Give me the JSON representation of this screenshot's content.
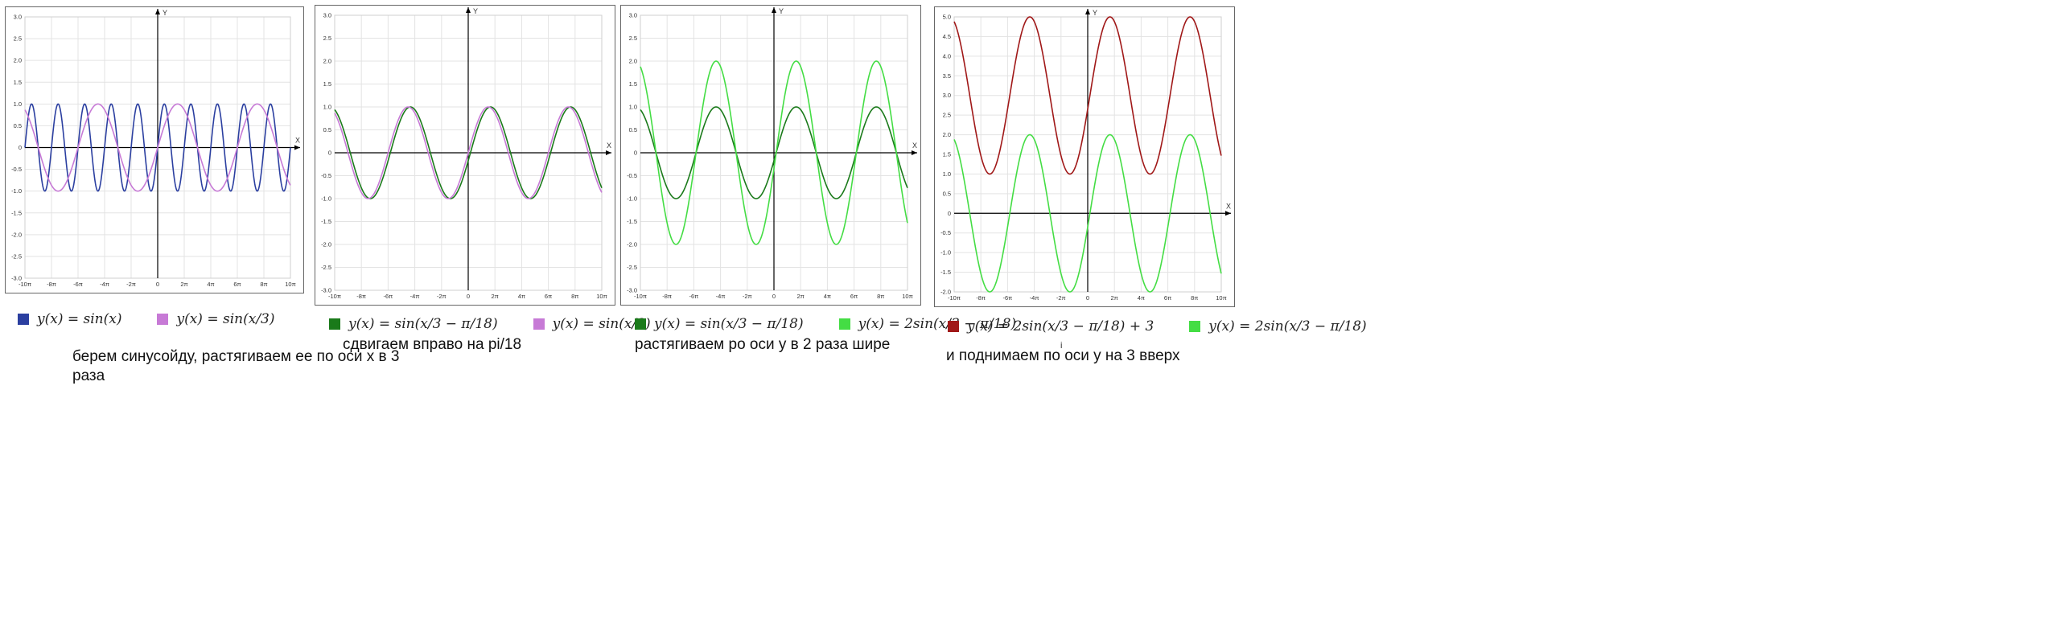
{
  "chart_data": [
    {
      "type": "line",
      "xlabel": "X",
      "ylabel": "Y",
      "xlim": [
        -10,
        10
      ],
      "ylim": [
        -3,
        3
      ],
      "yticks": [
        -3.0,
        -2.5,
        -2.0,
        -1.5,
        -1.0,
        -0.5,
        0,
        0.5,
        1.0,
        1.5,
        2.0,
        2.5,
        3.0
      ],
      "ytick_labels": [
        "-3.0",
        "-2.5",
        "-2.0",
        "-1.5",
        "-1.0",
        "-0.5",
        "0",
        "0.5",
        "1.0",
        "1.5",
        "2.0",
        "2.5",
        "3.0"
      ],
      "xticks": [
        -10,
        -8,
        -6,
        -4,
        -2,
        0,
        2,
        4,
        6,
        8,
        10
      ],
      "xtick_labels": [
        "-10π",
        "-8π",
        "-6π",
        "-4π",
        "-2π",
        "0",
        "2π",
        "4π",
        "6π",
        "8π",
        "10π"
      ],
      "series": [
        {
          "label": "y(x) = sin(x)",
          "color": "#2b3fa0",
          "amplitude": 1,
          "x_scale": 1,
          "phase": 0,
          "shift": 0
        },
        {
          "label": "y(x) = sin(x/3)",
          "color": "#c77ad6",
          "amplitude": 1,
          "x_scale": 3,
          "phase": 0,
          "shift": 0
        }
      ],
      "caption": "берем синусойду, растягиваем ее по оси х в 3 раза"
    },
    {
      "type": "line",
      "xlabel": "X",
      "ylabel": "Y",
      "xlim": [
        -10,
        10
      ],
      "ylim": [
        -3,
        3
      ],
      "yticks": [
        -3.0,
        -2.5,
        -2.0,
        -1.5,
        -1.0,
        -0.5,
        0,
        0.5,
        1.0,
        1.5,
        2.0,
        2.5,
        3.0
      ],
      "ytick_labels": [
        "-3.0",
        "-2.5",
        "-2.0",
        "-1.5",
        "-1.0",
        "-0.5",
        "0",
        "0.5",
        "1.0",
        "1.5",
        "2.0",
        "2.5",
        "3.0"
      ],
      "xticks": [
        -10,
        -8,
        -6,
        -4,
        -2,
        0,
        2,
        4,
        6,
        8,
        10
      ],
      "xtick_labels": [
        "-10π",
        "-8π",
        "-6π",
        "-4π",
        "-2π",
        "0",
        "2π",
        "4π",
        "6π",
        "8π",
        "10π"
      ],
      "series": [
        {
          "label": "y(x) = sin(x/3 − π/18)",
          "color": "#1a7a1a",
          "amplitude": 1,
          "x_scale": 3,
          "phase": 0.1745,
          "shift": 0
        },
        {
          "label": "y(x) = sin(x/3)",
          "color": "#c77ad6",
          "amplitude": 1,
          "x_scale": 3,
          "phase": 0,
          "shift": 0
        }
      ],
      "caption": "сдвигаем вправо на pi/18"
    },
    {
      "type": "line",
      "xlabel": "X",
      "ylabel": "Y",
      "xlim": [
        -10,
        10
      ],
      "ylim": [
        -3,
        3
      ],
      "yticks": [
        -3.0,
        -2.5,
        -2.0,
        -1.5,
        -1.0,
        -0.5,
        0,
        0.5,
        1.0,
        1.5,
        2.0,
        2.5,
        3.0
      ],
      "ytick_labels": [
        "-3.0",
        "-2.5",
        "-2.0",
        "-1.5",
        "-1.0",
        "-0.5",
        "0",
        "0.5",
        "1.0",
        "1.5",
        "2.0",
        "2.5",
        "3.0"
      ],
      "xticks": [
        -10,
        -8,
        -6,
        -4,
        -2,
        0,
        2,
        4,
        6,
        8,
        10
      ],
      "xtick_labels": [
        "-10π",
        "-8π",
        "-6π",
        "-4π",
        "-2π",
        "0",
        "2π",
        "4π",
        "6π",
        "8π",
        "10π"
      ],
      "series": [
        {
          "label": "y(x) = sin(x/3 − π/18)",
          "color": "#1a7a1a",
          "amplitude": 1,
          "x_scale": 3,
          "phase": 0.1745,
          "shift": 0
        },
        {
          "label": "y(x) = 2sin(x/3 − π/18)",
          "color": "#44dd44",
          "amplitude": 2,
          "x_scale": 3,
          "phase": 0.1745,
          "shift": 0
        }
      ],
      "caption": "растягиваем ро оси у в 2 раза шире"
    },
    {
      "type": "line",
      "xlabel": "X",
      "ylabel": "Y",
      "xlim": [
        -10,
        10
      ],
      "ylim": [
        -2,
        5
      ],
      "yticks": [
        -2.0,
        -1.5,
        -1.0,
        -0.5,
        0,
        0.5,
        1.0,
        1.5,
        2.0,
        2.5,
        3.0,
        3.5,
        4.0,
        4.5,
        5.0
      ],
      "ytick_labels": [
        "-2.0",
        "-1.5",
        "-1.0",
        "-0.5",
        "0",
        "0.5",
        "1.0",
        "1.5",
        "2.0",
        "2.5",
        "3.0",
        "3.5",
        "4.0",
        "4.5",
        "5.0"
      ],
      "xticks": [
        -10,
        -8,
        -6,
        -4,
        -2,
        0,
        2,
        4,
        6,
        8,
        10
      ],
      "xtick_labels": [
        "-10π",
        "-8π",
        "-6π",
        "-4π",
        "-2π",
        "0",
        "2π",
        "4π",
        "6π",
        "8π",
        "10π"
      ],
      "series": [
        {
          "label": "y(x) = 2sin(x/3 − π/18) + 3",
          "color": "#a01818",
          "amplitude": 2,
          "x_scale": 3,
          "phase": 0.1745,
          "shift": 3
        },
        {
          "label": "y(x) = 2sin(x/3 − π/18)",
          "color": "#44dd44",
          "amplitude": 2,
          "x_scale": 3,
          "phase": 0.1745,
          "shift": 0
        }
      ],
      "caption": "и поднимаем по оси у на 3 вверх",
      "stray_mark": "i"
    }
  ]
}
